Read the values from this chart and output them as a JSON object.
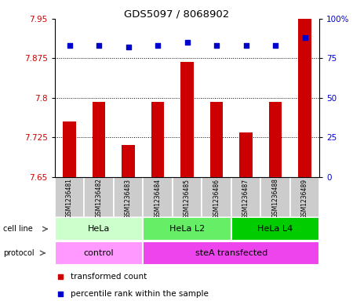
{
  "title": "GDS5097 / 8068902",
  "samples": [
    "GSM1236481",
    "GSM1236482",
    "GSM1236483",
    "GSM1236484",
    "GSM1236485",
    "GSM1236486",
    "GSM1236487",
    "GSM1236488",
    "GSM1236489"
  ],
  "transformed_counts": [
    7.755,
    7.793,
    7.71,
    7.793,
    7.868,
    7.793,
    7.735,
    7.793,
    7.95
  ],
  "percentile_ranks": [
    83,
    83,
    82,
    83,
    85,
    83,
    83,
    83,
    88
  ],
  "ylim_left": [
    7.65,
    7.95
  ],
  "yticks_left": [
    7.65,
    7.725,
    7.8,
    7.875,
    7.95
  ],
  "ytick_labels_left": [
    "7.65",
    "7.725",
    "7.8",
    "7.875",
    "7.95"
  ],
  "yticks_right": [
    0,
    25,
    50,
    75,
    100
  ],
  "ytick_labels_right": [
    "0",
    "25",
    "50",
    "75",
    "100%"
  ],
  "bar_color": "#cc0000",
  "dot_color": "#0000cc",
  "cell_line_groups": [
    {
      "label": "HeLa",
      "start": 0,
      "end": 3,
      "color": "#ccffcc"
    },
    {
      "label": "HeLa L2",
      "start": 3,
      "end": 6,
      "color": "#66ee66"
    },
    {
      "label": "HeLa L4",
      "start": 6,
      "end": 9,
      "color": "#00cc00"
    }
  ],
  "protocol_groups": [
    {
      "label": "control",
      "start": 0,
      "end": 3,
      "color": "#ff99ff"
    },
    {
      "label": "steA transfected",
      "start": 3,
      "end": 9,
      "color": "#ee44ee"
    }
  ],
  "legend_items": [
    {
      "label": "transformed count",
      "color": "#cc0000",
      "marker": "s"
    },
    {
      "label": "percentile rank within the sample",
      "color": "#0000cc",
      "marker": "s"
    }
  ],
  "tick_label_color_left": "#cc0000",
  "tick_label_color_right": "#0000cc",
  "background_color": "#ffffff",
  "plot_bg_color": "#ffffff",
  "bar_bottom": 7.65,
  "xtick_bg_color": "#cccccc",
  "xtick_line_color": "#ffffff"
}
